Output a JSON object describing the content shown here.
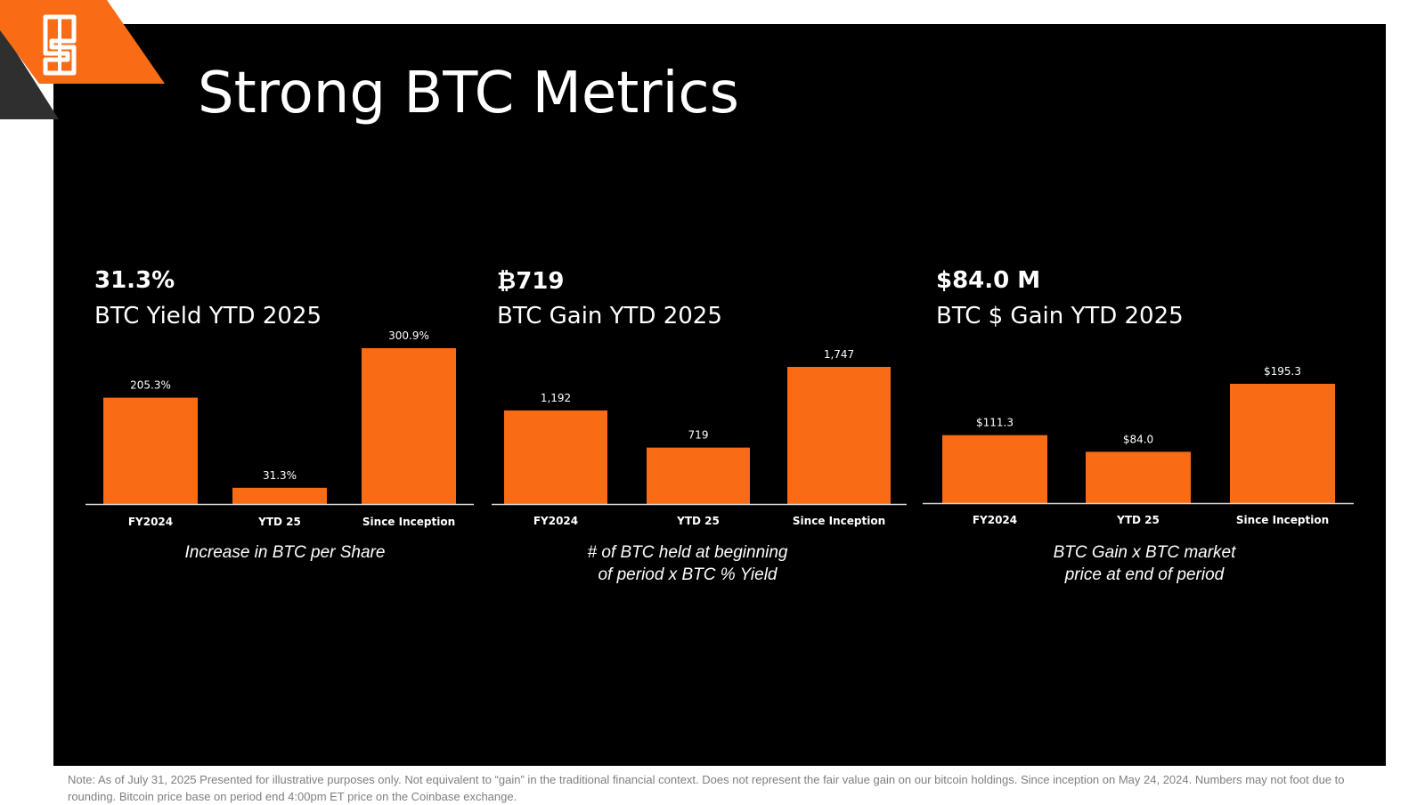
{
  "title": "Strong BTC Metrics",
  "colors": {
    "accent": "#f96b15",
    "background": "#000000",
    "text": "#ffffff",
    "footnote": "#7f7f7f"
  },
  "logo": {
    "icon": "s-shield-logo-icon"
  },
  "panels": [
    {
      "metric_value": "31.3%",
      "metric_label": "BTC Yield YTD 2025",
      "caption": "Increase in BTC per Share"
    },
    {
      "metric_value": "₿719",
      "metric_label": "BTC Gain YTD 2025",
      "caption": "# of BTC held at beginning\nof period x BTC % Yield"
    },
    {
      "metric_value": "$84.0 M",
      "metric_label": "BTC $ Gain YTD 2025",
      "caption": "BTC Gain x BTC market\nprice at end of period"
    }
  ],
  "chart_data": [
    {
      "type": "bar",
      "categories": [
        "FY2024",
        "YTD 25",
        "Since Inception"
      ],
      "values": [
        205.3,
        31.3,
        300.9
      ],
      "value_labels": [
        "205.3%",
        "31.3%",
        "300.9%"
      ],
      "ylim": [
        0,
        300.9
      ]
    },
    {
      "type": "bar",
      "categories": [
        "FY2024",
        "YTD 25",
        "Since Inception"
      ],
      "values": [
        1192,
        719,
        1747
      ],
      "value_labels": [
        "1,192",
        "719",
        "1,747"
      ],
      "ylim": [
        0,
        1747
      ]
    },
    {
      "type": "bar",
      "categories": [
        "FY2024",
        "YTD 25",
        "Since Inception"
      ],
      "values": [
        111.3,
        84.0,
        195.3
      ],
      "value_labels": [
        "$111.3",
        "$84.0",
        "$195.3"
      ],
      "ylim": [
        0,
        195.3
      ]
    }
  ],
  "footnote": "Note: As of  July 31, 2025  Presented for illustrative purposes only. Not equivalent to “gain” in the traditional financial context. Does not represent the fair value gain on our bitcoin holdings. Since inception on May 24, 2024. Numbers may not foot due to rounding. Bitcoin price base on period end 4:00pm ET price on the Coinbase exchange."
}
